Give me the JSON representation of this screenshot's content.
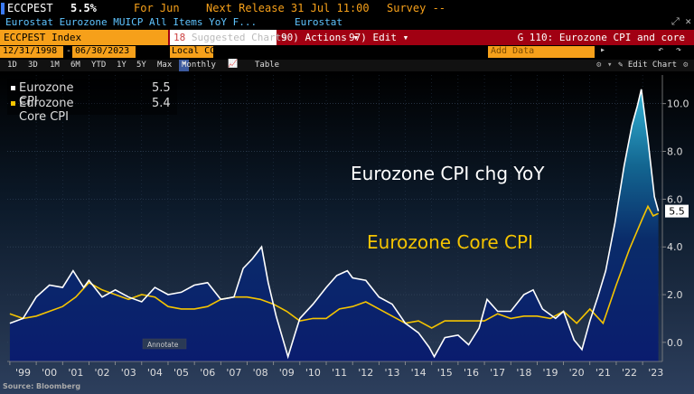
{
  "header": {
    "ticker": "ECCPEST",
    "last_value": "5.5%",
    "period": "For Jun",
    "next_release": "Next Release 31 Jul 11:00",
    "survey": "Survey --",
    "description": "Eurostat Eurozone MUICP All Items YoY F...",
    "source": "Eurostat",
    "window_icons": "⤢ ✕"
  },
  "toolbar": {
    "security": "ECCPEST Index",
    "suggested_charts": "Suggested Charts",
    "actions_label": "90) Actions ▾",
    "edit_label": "97) Edit ▾",
    "chart_title": "G 110: Eurozone CPI and core"
  },
  "dates": {
    "start": "12/31/1998",
    "end": "06/30/2023",
    "currency": "Local CCY",
    "add_data_placeholder": "Add Data",
    "nav_left": "▸",
    "nav_undo": "↶",
    "nav_redo": "↷"
  },
  "periods": [
    "1D",
    "3D",
    "1M",
    "6M",
    "YTD",
    "1Y",
    "5Y",
    "Max"
  ],
  "frequency": "Monthly",
  "table_label": "Table",
  "edit_chart_label": "✎ Edit Chart",
  "legend": [
    {
      "name": "Eurozone CPI",
      "value": "5.5",
      "color": "#ffffff"
    },
    {
      "name": "Eurozone Core CPI",
      "value": "5.4",
      "color": "#f5c400"
    }
  ],
  "annotate_label": "Annotate",
  "footer": "Source: Bloomberg",
  "chart_data": {
    "type": "line",
    "annotations": [
      "Eurozone CPI chg YoY",
      "Eurozone Core CPI"
    ],
    "ylim": [
      -0.8,
      11.2
    ],
    "xlim": [
      1998.9,
      2023.75
    ],
    "yticks": [
      "0.0",
      "2.0",
      "4.0",
      "6.0",
      "8.0",
      "10.0"
    ],
    "xticks": [
      "'99",
      "'00",
      "'01",
      "'02",
      "'03",
      "'04",
      "'05",
      "'06",
      "'07",
      "'08",
      "'09",
      "'10",
      "'11",
      "'12",
      "'13",
      "'14",
      "'15",
      "'16",
      "'17",
      "'18",
      "'19",
      "'20",
      "'21",
      "'22",
      "'23"
    ],
    "last_value_label": "5.5",
    "series": [
      {
        "name": "Eurozone CPI",
        "color": "#ffffff",
        "x": [
          1999.0,
          1999.5,
          2000.0,
          2000.5,
          2001.0,
          2001.4,
          2001.8,
          2002.0,
          2002.5,
          2003.0,
          2003.5,
          2004.0,
          2004.5,
          2005.0,
          2005.5,
          2006.0,
          2006.5,
          2007.0,
          2007.5,
          2007.85,
          2008.2,
          2008.55,
          2008.8,
          2009.1,
          2009.55,
          2009.8,
          2010.0,
          2010.5,
          2011.0,
          2011.4,
          2011.8,
          2012.0,
          2012.5,
          2013.0,
          2013.5,
          2014.0,
          2014.5,
          2014.9,
          2015.1,
          2015.5,
          2016.0,
          2016.4,
          2016.8,
          2017.1,
          2017.5,
          2018.0,
          2018.5,
          2018.85,
          2019.2,
          2019.7,
          2020.0,
          2020.4,
          2020.7,
          2021.0,
          2021.3,
          2021.6,
          2021.95,
          2022.3,
          2022.6,
          2022.8,
          2022.95,
          2023.2,
          2023.45,
          2023.6
        ],
        "values": [
          0.8,
          1.0,
          1.9,
          2.4,
          2.3,
          3.0,
          2.3,
          2.6,
          1.9,
          2.2,
          1.9,
          1.7,
          2.3,
          2.0,
          2.1,
          2.4,
          2.5,
          1.8,
          1.9,
          3.1,
          3.5,
          4.0,
          2.5,
          1.1,
          -0.6,
          0.3,
          1.0,
          1.6,
          2.3,
          2.8,
          3.0,
          2.7,
          2.6,
          1.9,
          1.6,
          0.8,
          0.4,
          -0.2,
          -0.6,
          0.2,
          0.3,
          -0.1,
          0.6,
          1.8,
          1.3,
          1.3,
          2.0,
          2.2,
          1.4,
          1.0,
          1.3,
          0.1,
          -0.3,
          0.9,
          1.9,
          3.0,
          5.0,
          7.4,
          9.1,
          9.9,
          10.6,
          8.5,
          6.1,
          5.5
        ]
      },
      {
        "name": "Eurozone Core CPI",
        "color": "#f5c400",
        "x": [
          1999.0,
          1999.5,
          2000.0,
          2000.5,
          2001.0,
          2001.5,
          2002.0,
          2002.5,
          2003.0,
          2003.5,
          2004.0,
          2004.5,
          2005.0,
          2005.5,
          2006.0,
          2006.5,
          2007.0,
          2007.5,
          2008.0,
          2008.5,
          2009.0,
          2009.5,
          2010.0,
          2010.5,
          2011.0,
          2011.5,
          2012.0,
          2012.5,
          2013.0,
          2013.5,
          2014.0,
          2014.5,
          2015.0,
          2015.5,
          2016.0,
          2016.5,
          2017.0,
          2017.5,
          2018.0,
          2018.5,
          2019.0,
          2019.5,
          2020.0,
          2020.5,
          2021.0,
          2021.5,
          2022.0,
          2022.5,
          2023.0,
          2023.2,
          2023.4,
          2023.6
        ],
        "values": [
          1.2,
          1.0,
          1.1,
          1.3,
          1.5,
          1.9,
          2.5,
          2.2,
          2.0,
          1.8,
          2.0,
          1.9,
          1.5,
          1.4,
          1.4,
          1.5,
          1.8,
          1.9,
          1.9,
          1.8,
          1.6,
          1.3,
          0.9,
          1.0,
          1.0,
          1.4,
          1.5,
          1.7,
          1.4,
          1.1,
          0.8,
          0.9,
          0.6,
          0.9,
          0.9,
          0.9,
          0.9,
          1.2,
          1.0,
          1.1,
          1.1,
          1.0,
          1.3,
          0.8,
          1.4,
          0.8,
          2.4,
          3.9,
          5.2,
          5.7,
          5.3,
          5.4
        ]
      }
    ]
  }
}
